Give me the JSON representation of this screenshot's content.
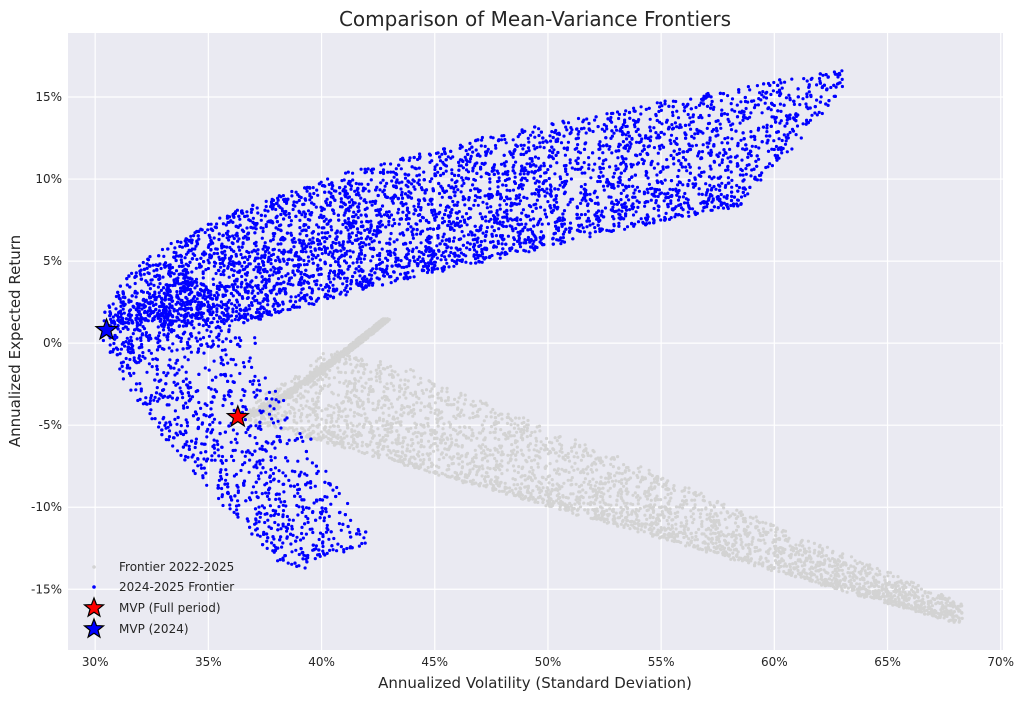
{
  "chart_data": {
    "type": "scatter",
    "title": "Comparison of Mean-Variance Frontiers",
    "xlabel": "Annualized Volatility (Standard Deviation)",
    "ylabel": "Annualized Expected Return",
    "xlim": [
      0.288,
      0.701
    ],
    "ylim": [
      -0.187,
      0.189
    ],
    "xticks": [
      0.3,
      0.35,
      0.4,
      0.45,
      0.5,
      0.55,
      0.6,
      0.65,
      0.7
    ],
    "xtick_labels": [
      "30%",
      "35%",
      "40%",
      "45%",
      "50%",
      "55%",
      "60%",
      "65%",
      "70%"
    ],
    "yticks": [
      0.15,
      0.1,
      0.05,
      0.0,
      -0.05,
      -0.1,
      -0.15
    ],
    "ytick_labels": [
      "15%",
      "10%",
      "5%",
      "0%",
      "-5%",
      "-10%",
      "-15%"
    ],
    "grid": true,
    "legend_position": "lower-left",
    "background_color": "#eaeaf2",
    "series": [
      {
        "name": "Frontier 2022-2025",
        "marker": "dot",
        "color": "#d3d3d3",
        "shape": "frontier-cloud",
        "vertex": [
          0.363,
          -0.045
        ],
        "upper_branch_end": [
          0.429,
          0.015
        ],
        "lower_branch_end": [
          0.682,
          -0.171
        ],
        "approx_points": 9000
      },
      {
        "name": "2024-2025 Frontier",
        "marker": "dot",
        "color": "#0000ff",
        "shape": "frontier-cloud",
        "vertex": [
          0.305,
          0.008
        ],
        "upper_branch_end": [
          0.638,
          0.168
        ],
        "lower_branch_end": [
          0.387,
          -0.139
        ],
        "approx_points": 16000
      },
      {
        "name": "MVP (Full period)",
        "marker": "star",
        "color": "#ff0000",
        "x": [
          0.363
        ],
        "y": [
          -0.045
        ]
      },
      {
        "name": "MVP (2024)",
        "marker": "star",
        "color": "#0000ff",
        "x": [
          0.305
        ],
        "y": [
          0.008
        ]
      }
    ]
  }
}
